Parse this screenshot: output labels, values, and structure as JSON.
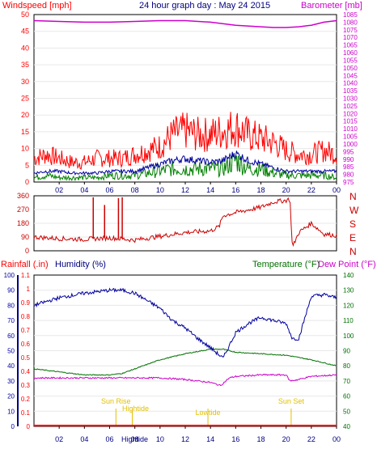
{
  "top_chart": {
    "header_left": "Windspeed [mph]",
    "header_center": "24 hour graph day : May 24 2015",
    "header_right": "Barometer [mb]",
    "left_ticks": [
      "50",
      "45",
      "40",
      "35",
      "30",
      "25",
      "20",
      "15",
      "10",
      "5",
      "0"
    ],
    "right_ticks": [
      "1085",
      "1080",
      "1075",
      "1070",
      "1065",
      "1060",
      "1055",
      "1050",
      "1045",
      "1040",
      "1035",
      "1030",
      "1025",
      "1020",
      "1015",
      "1010",
      "1005",
      "1000",
      "995",
      "990",
      "985",
      "980",
      "975"
    ]
  },
  "direction_chart": {
    "left_ticks": [
      "360",
      "270",
      "180",
      "90",
      "0"
    ],
    "compass_labels": [
      "N",
      "W",
      "S",
      "E",
      "N"
    ]
  },
  "bottom_chart": {
    "header_rainfall": "Rainfall (.in)",
    "header_humidity": "Humidity (%)",
    "header_temperature": "Temperature (°F)",
    "header_dewpoint": "Dew Point (°F)",
    "rain_ticks": [
      "1.1",
      "1",
      "0.9",
      "0.8",
      "0.7",
      "0.6",
      "0.5",
      "0.4",
      "0.3",
      "0.2",
      "0.1",
      "0"
    ],
    "humidity_ticks": [
      "100",
      "90",
      "80",
      "70",
      "60",
      "50",
      "40",
      "30",
      "20",
      "10",
      "0"
    ],
    "temp_ticks": [
      "140",
      "130",
      "120",
      "110",
      "100",
      "90",
      "80",
      "70",
      "60",
      "50",
      "40"
    ],
    "events": [
      {
        "label": "Sun Rise",
        "hour": 6.5
      },
      {
        "label": "Hightide",
        "hour": 7.8
      },
      {
        "label": "Lowtide",
        "hour": 13.8
      },
      {
        "label": "Sun Set",
        "hour": 20.4
      }
    ],
    "bottom_label": "Hightide"
  },
  "x_ticks": [
    "02",
    "04",
    "06",
    "08",
    "10",
    "12",
    "14",
    "16",
    "18",
    "20",
    "22",
    "00"
  ],
  "colors": {
    "wind_gust": "#ff0000",
    "wind_avg": "#0000a0",
    "wind_low": "#008000",
    "barometer": "#cc00cc",
    "direction": "#cc0000",
    "humidity": "#0000a0",
    "temperature": "#007000",
    "dewpoint": "#cc00cc",
    "rain": "#ff0000",
    "event": "#e0c000",
    "axis_blue": "#000080"
  },
  "chart_data": [
    {
      "type": "line",
      "title": "24 hour graph day : May 24 2015",
      "x_label": "",
      "x_ticks": [
        "02",
        "04",
        "06",
        "08",
        "10",
        "12",
        "14",
        "16",
        "18",
        "20",
        "22",
        "00"
      ],
      "y_left": {
        "label": "Windspeed [mph]",
        "range": [
          0,
          50
        ]
      },
      "y_right": {
        "label": "Barometer [mb]",
        "range": [
          975,
          1085
        ]
      },
      "series": [
        {
          "axis": "left",
          "x": [
            0,
            1,
            2,
            3,
            4,
            5,
            6,
            7,
            8,
            9,
            10,
            11,
            12,
            13,
            14,
            15,
            16,
            17,
            18,
            19,
            20,
            21,
            22,
            23,
            24
          ],
          "values": [
            6,
            7,
            6,
            5,
            5,
            6,
            6,
            6,
            7,
            8,
            9,
            12,
            13,
            12,
            12,
            13,
            14,
            12,
            11,
            10,
            8,
            7,
            7,
            8,
            7
          ]
        },
        {
          "axis": "left",
          "x": [
            0,
            1,
            2,
            3,
            4,
            5,
            6,
            7,
            8,
            9,
            10,
            11,
            12,
            13,
            14,
            15,
            16,
            17,
            18,
            19,
            20,
            21,
            22,
            23,
            24
          ],
          "values": [
            2.5,
            3,
            3,
            2.5,
            2.5,
            2.5,
            3,
            3,
            3,
            4,
            5,
            6,
            6.5,
            6,
            5.5,
            6,
            8,
            6,
            5,
            4,
            3,
            3,
            3,
            3,
            3
          ]
        },
        {
          "axis": "left",
          "x": [
            0,
            1,
            2,
            3,
            4,
            5,
            6,
            7,
            8,
            9,
            10,
            11,
            12,
            13,
            14,
            15,
            16,
            17,
            18,
            19,
            20,
            21,
            22,
            23,
            24
          ],
          "values": [
            1,
            1.5,
            1,
            1,
            1,
            1,
            1.5,
            1.5,
            1.5,
            2,
            2.5,
            3,
            3,
            3,
            3,
            3,
            5,
            3,
            3,
            2,
            1.5,
            1.5,
            1.5,
            1.5,
            1
          ]
        },
        {
          "axis": "right",
          "x": [
            0,
            2,
            4,
            6,
            8,
            10,
            12,
            14,
            16,
            18,
            19,
            20,
            21,
            22,
            23,
            24
          ],
          "values": [
            1081,
            1080.5,
            1080,
            1080,
            1080.5,
            1081,
            1081,
            1080,
            1078,
            1077,
            1076.5,
            1076.5,
            1077,
            1078,
            1080,
            1081
          ]
        }
      ]
    },
    {
      "type": "line",
      "x_ticks": [
        "02",
        "04",
        "06",
        "08",
        "10",
        "12",
        "14",
        "16",
        "18",
        "20",
        "22",
        "00"
      ],
      "y": {
        "range": [
          0,
          360
        ],
        "ticks": [
          360,
          270,
          180,
          90,
          0
        ]
      },
      "series": [
        {
          "x": [
            0,
            2,
            4,
            6,
            8,
            10,
            12,
            14,
            14.7,
            15,
            16,
            18,
            19,
            20,
            20.3,
            20.5,
            21,
            22,
            23,
            24
          ],
          "values": [
            90,
            80,
            75,
            85,
            70,
            95,
            120,
            130,
            160,
            230,
            250,
            285,
            320,
            330,
            340,
            20,
            120,
            180,
            110,
            100
          ]
        }
      ],
      "spikes": [
        {
          "hour": 4.7,
          "value": 350
        },
        {
          "hour": 5.6,
          "value": 300
        },
        {
          "hour": 6.7,
          "value": 345
        },
        {
          "hour": 7.0,
          "value": 350
        }
      ]
    },
    {
      "type": "line",
      "x_ticks": [
        "02",
        "04",
        "06",
        "08",
        "10",
        "12",
        "14",
        "16",
        "18",
        "20",
        "22",
        "00"
      ],
      "y_rain": {
        "label": "Rainfall (.in)",
        "range": [
          0,
          1.1
        ]
      },
      "y_humidity": {
        "label": "Humidity (%)",
        "range": [
          0,
          100
        ]
      },
      "y_temp": {
        "label": "Temperature (°F)",
        "range": [
          40,
          140
        ]
      },
      "series": [
        {
          "axis": "humidity",
          "x": [
            0,
            2,
            4,
            6,
            7,
            8,
            10,
            11,
            12,
            13,
            14,
            15,
            16,
            17,
            18,
            19,
            20,
            20.5,
            21,
            22,
            23,
            24
          ],
          "values": [
            80,
            85,
            88,
            90,
            90,
            88,
            78,
            70,
            65,
            58,
            52,
            45,
            62,
            68,
            72,
            70,
            68,
            58,
            58,
            86,
            87,
            85
          ]
        },
        {
          "axis": "temp",
          "x": [
            0,
            2,
            4,
            6,
            7,
            8,
            10,
            12,
            14,
            15,
            16,
            18,
            20,
            22,
            24
          ],
          "values": [
            78,
            76,
            74,
            74,
            75,
            78,
            84,
            88,
            91,
            91,
            89,
            88,
            87,
            84,
            80
          ]
        },
        {
          "axis": "temp",
          "x": [
            0,
            2,
            4,
            6,
            8,
            10,
            12,
            14,
            14.8,
            15.5,
            16,
            18,
            20,
            20.3,
            21,
            22,
            24
          ],
          "values": [
            72,
            72,
            72,
            72,
            72,
            72,
            71,
            69,
            67,
            72,
            73,
            74,
            74,
            70,
            71,
            73,
            74
          ]
        },
        {
          "axis": "rain",
          "x": [
            0,
            24
          ],
          "values": [
            0,
            0
          ]
        }
      ]
    }
  ]
}
